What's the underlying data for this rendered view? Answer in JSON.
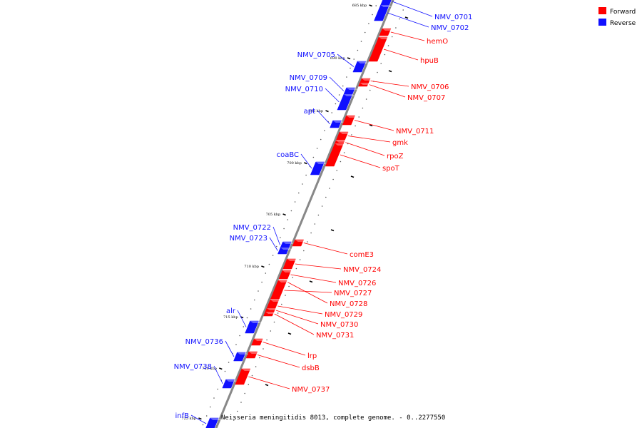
{
  "colors": {
    "forward": "#ff0000",
    "reverse": "#1010ff",
    "axis": "#888888"
  },
  "legend": {
    "forward": "Forward",
    "reverse": "Reverse"
  },
  "caption": "Neisseria meningitidis 8013, complete genome. - 0..2277550",
  "ticks": [
    "685 kbp",
    "690 kbp",
    "695 kbp",
    "700 kbp",
    "705 kbp",
    "710 kbp",
    "715 kbp",
    "720 kbp",
    "725 kbp"
  ],
  "genes": [
    {
      "name": "NMV_0701",
      "strand": "reverse",
      "side": "right"
    },
    {
      "name": "NMV_0702",
      "strand": "reverse",
      "side": "right"
    },
    {
      "name": "hemO",
      "strand": "forward",
      "side": "right"
    },
    {
      "name": "hpuB",
      "strand": "forward",
      "side": "right"
    },
    {
      "name": "NMV_0705",
      "strand": "reverse",
      "side": "left"
    },
    {
      "name": "NMV_0709",
      "strand": "reverse",
      "side": "left"
    },
    {
      "name": "NMV_0710",
      "strand": "reverse",
      "side": "left"
    },
    {
      "name": "NMV_0706",
      "strand": "forward",
      "side": "right"
    },
    {
      "name": "NMV_0707",
      "strand": "forward",
      "side": "right"
    },
    {
      "name": "apt",
      "strand": "reverse",
      "side": "left"
    },
    {
      "name": "NMV_0711",
      "strand": "forward",
      "side": "right"
    },
    {
      "name": "gmk",
      "strand": "forward",
      "side": "right"
    },
    {
      "name": "rpoZ",
      "strand": "forward",
      "side": "right"
    },
    {
      "name": "coaBC",
      "strand": "reverse",
      "side": "left"
    },
    {
      "name": "spoT",
      "strand": "forward",
      "side": "right"
    },
    {
      "name": "NMV_0722",
      "strand": "reverse",
      "side": "left"
    },
    {
      "name": "NMV_0723",
      "strand": "reverse",
      "side": "left"
    },
    {
      "name": "comE3",
      "strand": "forward",
      "side": "right"
    },
    {
      "name": "NMV_0724",
      "strand": "forward",
      "side": "right"
    },
    {
      "name": "NMV_0726",
      "strand": "forward",
      "side": "right"
    },
    {
      "name": "NMV_0727",
      "strand": "forward",
      "side": "right"
    },
    {
      "name": "NMV_0728",
      "strand": "forward",
      "side": "right"
    },
    {
      "name": "NMV_0729",
      "strand": "forward",
      "side": "right"
    },
    {
      "name": "NMV_0730",
      "strand": "forward",
      "side": "right"
    },
    {
      "name": "NMV_0731",
      "strand": "forward",
      "side": "right"
    },
    {
      "name": "alr",
      "strand": "reverse",
      "side": "left"
    },
    {
      "name": "lrp",
      "strand": "forward",
      "side": "right"
    },
    {
      "name": "dsbB",
      "strand": "forward",
      "side": "right"
    },
    {
      "name": "NMV_0736",
      "strand": "reverse",
      "side": "left"
    },
    {
      "name": "NMV_0738",
      "strand": "reverse",
      "side": "left"
    },
    {
      "name": "NMV_0737",
      "strand": "forward",
      "side": "right"
    },
    {
      "name": "infB",
      "strand": "reverse",
      "side": "left"
    }
  ]
}
